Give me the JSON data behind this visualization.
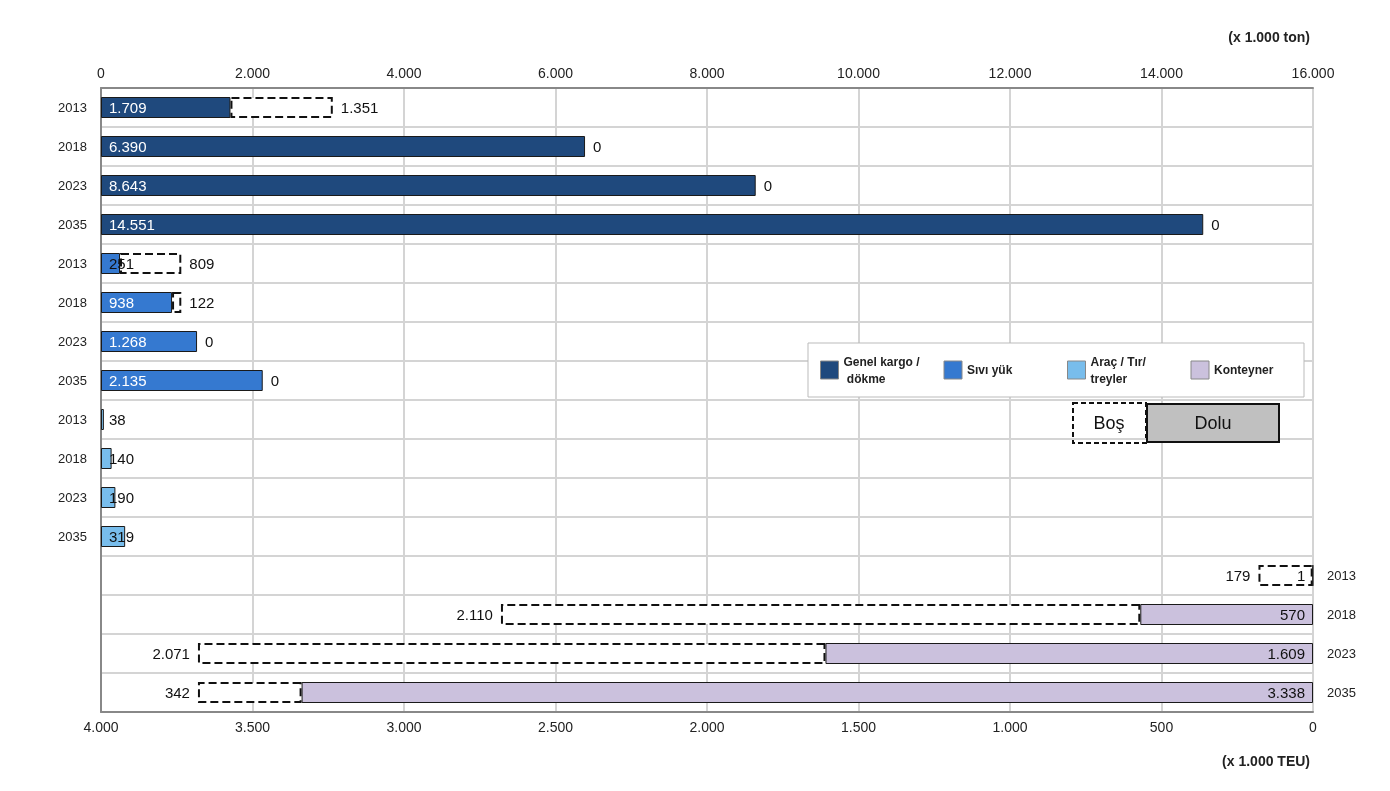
{
  "chart_data": {
    "type": "bar",
    "orientation": "horizontal",
    "stacked": true,
    "grid": true,
    "legend": "right",
    "categories": [
      "2013",
      "2018",
      "2023",
      "2035",
      "2013",
      "2018",
      "2023",
      "2035",
      "2013",
      "2018",
      "2023",
      "2035",
      "2013",
      "2018",
      "2023",
      "2035"
    ],
    "xlabel": "(x 1.000 ton)",
    "xlim": [
      0,
      16000
    ],
    "xticks": [
      {
        "value": 0,
        "label": "0"
      },
      {
        "value": 2000,
        "label": "2.000"
      },
      {
        "value": 4000,
        "label": "4.000"
      },
      {
        "value": 6000,
        "label": "6.000"
      },
      {
        "value": 8000,
        "label": "8.000"
      },
      {
        "value": 10000,
        "label": "10.000"
      },
      {
        "value": 12000,
        "label": "12.000"
      },
      {
        "value": 14000,
        "label": "14.000"
      },
      {
        "value": 16000,
        "label": "16.000"
      }
    ],
    "x2label": "(x 1.000 TEU)",
    "x2lim": [
      4000,
      0
    ],
    "x2ticks": [
      {
        "value": 4000,
        "label": "4.000"
      },
      {
        "value": 3500,
        "label": "3.500"
      },
      {
        "value": 3000,
        "label": "3.000"
      },
      {
        "value": 2500,
        "label": "2.500"
      },
      {
        "value": 2000,
        "label": "2.000"
      },
      {
        "value": 1500,
        "label": "1.500"
      },
      {
        "value": 1000,
        "label": "1.000"
      },
      {
        "value": 500,
        "label": "500"
      },
      {
        "value": 0,
        "label": "0"
      }
    ],
    "series": [
      {
        "name": "Genel kargo / dökme",
        "color": "#1f497d",
        "values": [
          1709,
          6390,
          8643,
          14551,
          null,
          null,
          null,
          null,
          null,
          null,
          null,
          null,
          null,
          null,
          null,
          null
        ],
        "value_labels": [
          "1.709",
          "6.390",
          "8.643",
          "14.551",
          null,
          null,
          null,
          null,
          null,
          null,
          null,
          null,
          null,
          null,
          null,
          null
        ]
      },
      {
        "name": "Sıvı yük",
        "color": "#3579d0",
        "values": [
          null,
          null,
          null,
          null,
          251,
          938,
          1268,
          2135,
          null,
          null,
          null,
          null,
          null,
          null,
          null,
          null
        ],
        "value_labels": [
          null,
          null,
          null,
          null,
          "251",
          "938",
          "1.268",
          "2.135",
          null,
          null,
          null,
          null,
          null,
          null,
          null,
          null
        ]
      },
      {
        "name": "Araç / Tır/treyler",
        "color": "#78bdec",
        "values": [
          null,
          null,
          null,
          null,
          null,
          null,
          null,
          null,
          38,
          140,
          190,
          319,
          null,
          null,
          null,
          null
        ],
        "value_labels": [
          null,
          null,
          null,
          null,
          null,
          null,
          null,
          null,
          "38",
          "140",
          "190",
          "319",
          null,
          null,
          null,
          null
        ]
      },
      {
        "name": "Boş",
        "color": "#ffffff",
        "line_style": "dashed",
        "values": [
          1351,
          0,
          0,
          0,
          809,
          122,
          0,
          0,
          null,
          null,
          null,
          null,
          null,
          null,
          null,
          null
        ],
        "value_labels": [
          "1.351",
          "0",
          "0",
          "0",
          "809",
          "122",
          "0",
          "0",
          null,
          null,
          null,
          null,
          null,
          null,
          null,
          null
        ]
      },
      {
        "name": "Konteyner",
        "color": "#cbc1dd",
        "axis": "x2",
        "values": [
          null,
          null,
          null,
          null,
          null,
          null,
          null,
          null,
          null,
          null,
          null,
          null,
          1,
          570,
          1609,
          3338
        ],
        "value_labels": [
          null,
          null,
          null,
          null,
          null,
          null,
          null,
          null,
          null,
          null,
          null,
          null,
          "1",
          "570",
          "1.609",
          "3.338"
        ]
      },
      {
        "color": "#ffffff",
        "line_style": "dashed",
        "axis": "x2",
        "values": [
          null,
          null,
          null,
          null,
          null,
          null,
          null,
          null,
          null,
          null,
          null,
          null,
          179,
          2110,
          2071,
          342
        ],
        "value_labels": [
          null,
          null,
          null,
          null,
          null,
          null,
          null,
          null,
          null,
          null,
          null,
          null,
          "179",
          "2.110",
          "2.071",
          "342"
        ]
      }
    ],
    "annotations": [
      "Dolu"
    ]
  }
}
